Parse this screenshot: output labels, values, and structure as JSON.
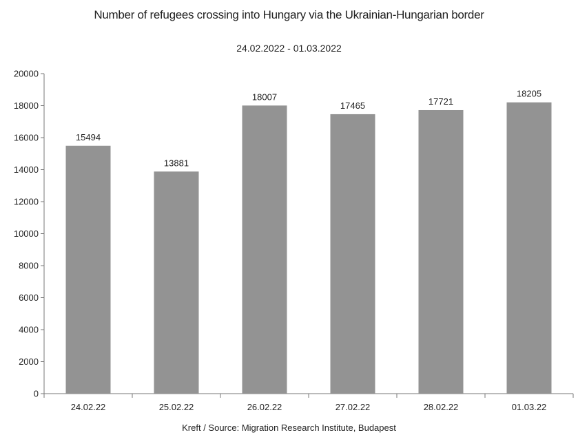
{
  "chart_data": {
    "type": "bar",
    "title": "Number of refugees crossing into Hungary via the Ukrainian-Hungarian border",
    "subtitle": "24.02.2022 - 01.03.2022",
    "source": "Kreft / Source: Migration Research Institute, Budapest",
    "categories": [
      "24.02.22",
      "25.02.22",
      "26.02.22",
      "27.02.22",
      "28.02.22",
      "01.03.22"
    ],
    "values": [
      15494,
      13881,
      18007,
      17465,
      17721,
      18205
    ],
    "ylim": [
      0,
      20000
    ],
    "yticks": [
      0,
      2000,
      4000,
      6000,
      8000,
      10000,
      12000,
      14000,
      16000,
      18000,
      20000
    ],
    "bar_color": "#939393",
    "grid": false,
    "xlabel": "",
    "ylabel": ""
  }
}
